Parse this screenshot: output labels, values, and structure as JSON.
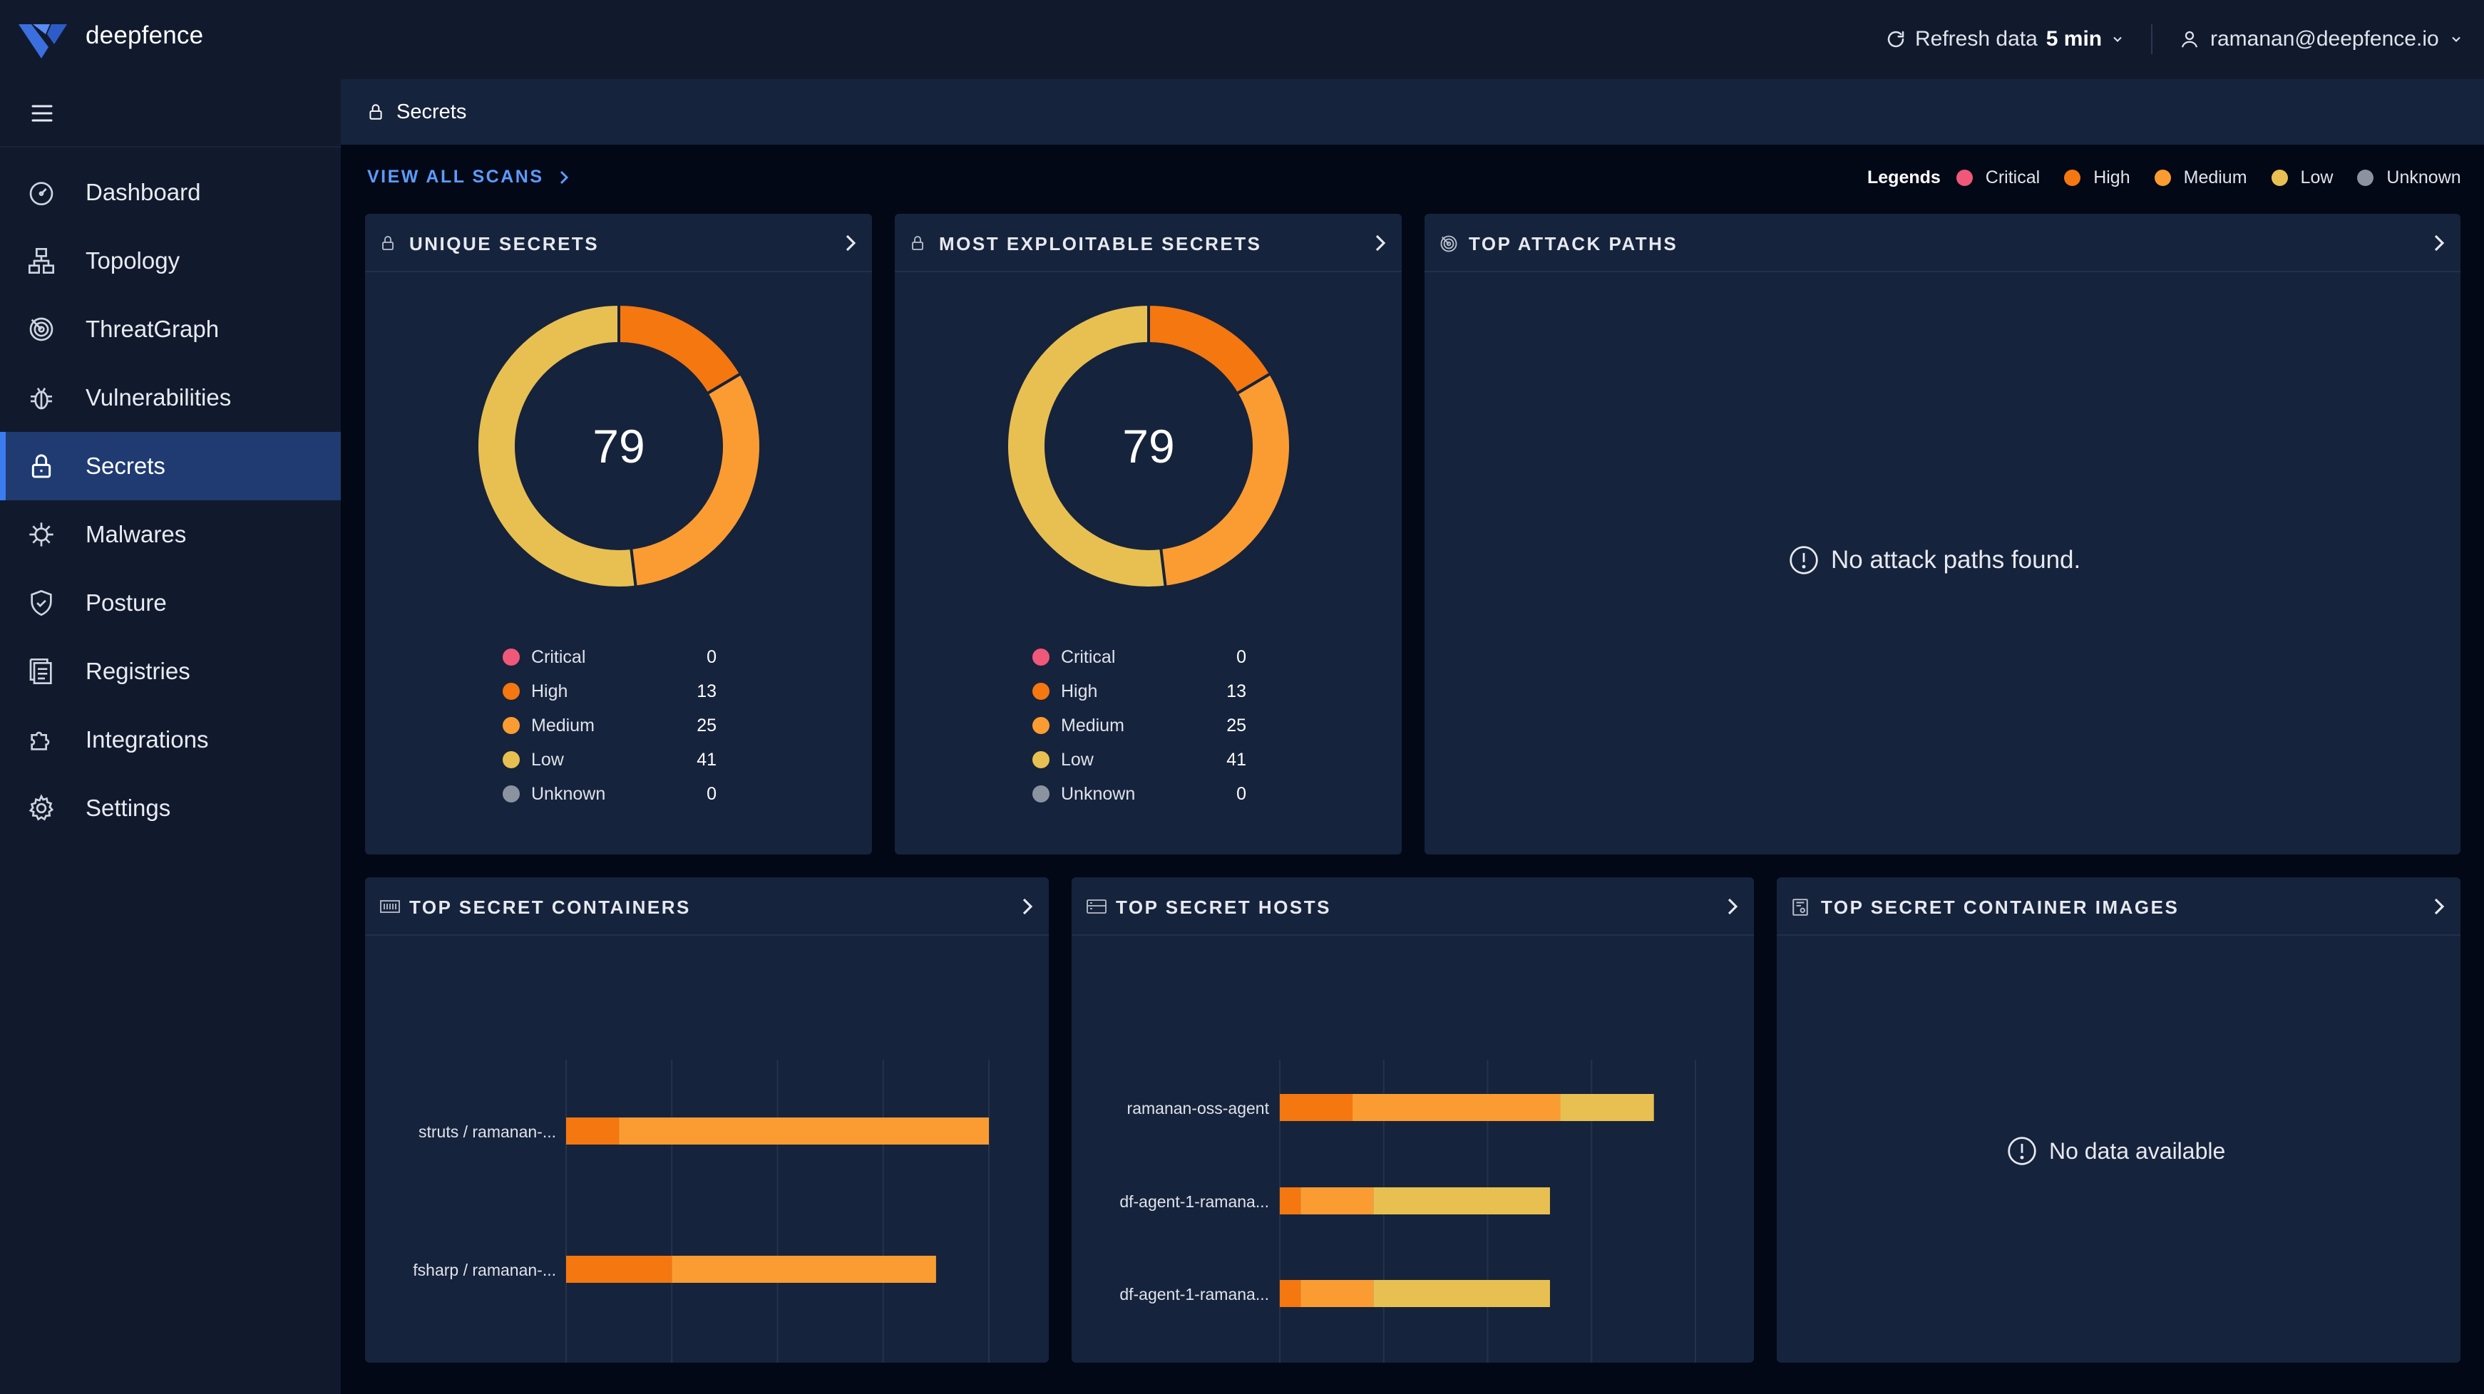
{
  "header": {
    "brand": "deepfence",
    "refresh_label": "Refresh data",
    "refresh_value": "5 min",
    "user_email": "ramanan@deepfence.io"
  },
  "sidebar": {
    "items": [
      {
        "label": "Dashboard",
        "icon": "dashboard-icon"
      },
      {
        "label": "Topology",
        "icon": "topology-icon"
      },
      {
        "label": "ThreatGraph",
        "icon": "threatgraph-icon"
      },
      {
        "label": "Vulnerabilities",
        "icon": "bug-icon"
      },
      {
        "label": "Secrets",
        "icon": "lock-icon",
        "active": true
      },
      {
        "label": "Malwares",
        "icon": "malware-icon"
      },
      {
        "label": "Posture",
        "icon": "shield-icon"
      },
      {
        "label": "Registries",
        "icon": "registry-icon"
      },
      {
        "label": "Integrations",
        "icon": "puzzle-icon"
      },
      {
        "label": "Settings",
        "icon": "gear-icon"
      }
    ]
  },
  "breadcrumb": {
    "title": "Secrets"
  },
  "view_all_scans": "VIEW ALL SCANS",
  "legend": {
    "title": "Legends",
    "items": [
      "Critical",
      "High",
      "Medium",
      "Low",
      "Unknown"
    ]
  },
  "colors": {
    "critical": "#f0587a",
    "high": "#f5770f",
    "medium": "#fb9c32",
    "low": "#e8c052",
    "unknown": "#8a939f"
  },
  "cards": {
    "unique_secrets": {
      "title": "UNIQUE SECRETS",
      "total": "79"
    },
    "most_exploitable": {
      "title": "MOST EXPLOITABLE SECRETS",
      "total": "79"
    },
    "attack_paths": {
      "title": "TOP ATTACK PATHS",
      "empty": "No attack paths found."
    },
    "containers": {
      "title": "TOP SECRET CONTAINERS"
    },
    "hosts": {
      "title": "TOP SECRET HOSTS"
    },
    "images": {
      "title": "TOP SECRET CONTAINER IMAGES",
      "empty": "No data available"
    }
  },
  "severity_counts": [
    {
      "name": "Critical",
      "value": "0"
    },
    {
      "name": "High",
      "value": "13"
    },
    {
      "name": "Medium",
      "value": "25"
    },
    {
      "name": "Low",
      "value": "41"
    },
    {
      "name": "Unknown",
      "value": "0"
    }
  ],
  "chart_data": [
    {
      "type": "pie",
      "title": "UNIQUE SECRETS",
      "categories": [
        "Critical",
        "High",
        "Medium",
        "Low",
        "Unknown"
      ],
      "values": [
        0,
        13,
        25,
        41,
        0
      ],
      "total": 79
    },
    {
      "type": "pie",
      "title": "MOST EXPLOITABLE SECRETS",
      "categories": [
        "Critical",
        "High",
        "Medium",
        "Low",
        "Unknown"
      ],
      "values": [
        0,
        13,
        25,
        41,
        0
      ],
      "total": 79
    },
    {
      "type": "bar",
      "orientation": "horizontal",
      "stacked": true,
      "title": "TOP SECRET CONTAINERS",
      "categories": [
        "struts / ramanan-...",
        "fsharp / ramanan-..."
      ],
      "series": [
        {
          "name": "High",
          "values": [
            1,
            2
          ]
        },
        {
          "name": "Medium",
          "values": [
            7,
            5
          ]
        },
        {
          "name": "Low",
          "values": [
            0,
            0
          ]
        }
      ],
      "xlim": [
        0,
        8
      ],
      "xticks": [
        0,
        2,
        4,
        6,
        8
      ],
      "grid": true
    },
    {
      "type": "bar",
      "orientation": "horizontal",
      "stacked": true,
      "title": "TOP SECRET HOSTS",
      "categories": [
        "ramanan-oss-agent",
        "df-agent-1-ramana...",
        "df-agent-1-ramana..."
      ],
      "series": [
        {
          "name": "High",
          "values": [
            7,
            2,
            2
          ]
        },
        {
          "name": "Medium",
          "values": [
            20,
            7,
            7
          ]
        },
        {
          "name": "Low",
          "values": [
            9,
            17,
            17
          ]
        }
      ],
      "xlim": [
        0,
        40
      ],
      "xticks": [
        0,
        10,
        20,
        30,
        40
      ],
      "grid": true
    }
  ]
}
